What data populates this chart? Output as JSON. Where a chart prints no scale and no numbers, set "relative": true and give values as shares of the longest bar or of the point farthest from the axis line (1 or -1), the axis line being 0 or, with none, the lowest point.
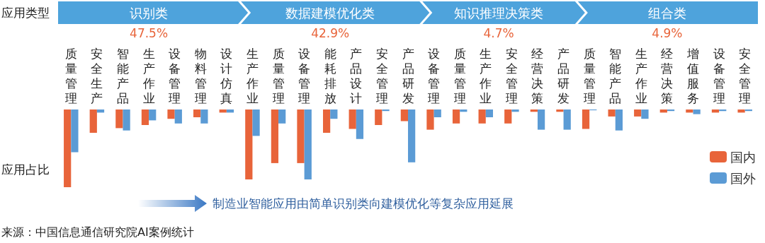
{
  "chart_data": {
    "type": "bar",
    "relative": true,
    "grid": false,
    "legend": "right",
    "categories": [
      "质量管理",
      "安全生产",
      "智能产品",
      "生产作业",
      "设备管理",
      "物料管理",
      "设计仿真",
      "生产作业",
      "质量管理",
      "设备管理",
      "能耗排放",
      "产品设计",
      "安全管理",
      "产品研发",
      "设备管理",
      "质量管理",
      "生产作业",
      "安全管理",
      "经营决策",
      "产品研发",
      "质量管理",
      "智能产品",
      "生产作业",
      "经营决策",
      "增值服务",
      "设备管理",
      "安全管理"
    ],
    "series": [
      {
        "name": "国内",
        "color": "#e8643a",
        "values": [
          -1,
          -0.3,
          -0.24,
          -0.2,
          -0.12,
          -0.1,
          -0.04,
          -0.9,
          -0.69,
          -0.69,
          -0.3,
          -0.25,
          -0.2,
          -0.15,
          -0.26,
          -0.18,
          -0.18,
          -0.18,
          -0.03,
          -0.03,
          -0.25,
          -0.09,
          -0.09,
          -0.04,
          -0.04,
          -0.04,
          -0.04
        ]
      },
      {
        "name": "国外",
        "color": "#5b9bd5",
        "values": [
          -0.55,
          -0.04,
          -0.27,
          -0.14,
          -0.18,
          -0.18,
          -0.04,
          -0.34,
          -0.18,
          -0.9,
          -0.12,
          -0.38,
          -0.02,
          -0.68,
          -0.1,
          -0.03,
          -0.1,
          -0.03,
          -0.26,
          -0.26,
          -0.01,
          -0.27,
          -0.12,
          -0.02,
          -0.06,
          -0.02,
          -0.02
        ]
      }
    ],
    "annotations": [
      "应用类型",
      "识别类",
      "数据建模优化类",
      "知识推理决策类",
      "组合类",
      "47.5%",
      "42.9%",
      "4.7%",
      "4.9%",
      "应用占比",
      "制造业智能应用由简单识别类向建模优化等复杂应用延展",
      "来源：中国信息通信研究院AI案例统计"
    ]
  }
}
